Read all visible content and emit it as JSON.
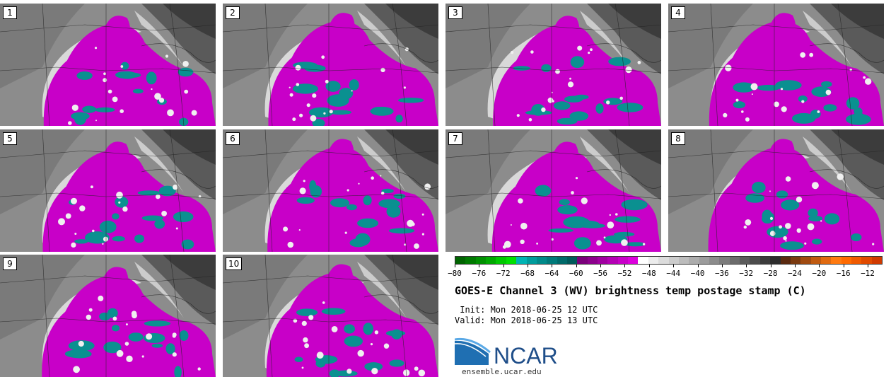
{
  "panels": [
    "1",
    "2",
    "3",
    "4",
    "5",
    "6",
    "7",
    "8",
    "9",
    "10"
  ],
  "colorbar": {
    "ticks": [
      "−80",
      "−76",
      "−72",
      "−68",
      "−64",
      "−60",
      "−56",
      "−52",
      "−48",
      "−44",
      "−40",
      "−36",
      "−32",
      "−28",
      "−24",
      "−20",
      "−16",
      "−12"
    ],
    "colors": [
      "#006400",
      "#007a00",
      "#009000",
      "#00a800",
      "#00c800",
      "#00e000",
      "#00b4b4",
      "#009c9c",
      "#008a8a",
      "#007a7a",
      "#006a6a",
      "#005a5a",
      "#7a007a",
      "#8c008c",
      "#a000a0",
      "#b400b4",
      "#c800c8",
      "#dc00dc",
      "#ffffff",
      "#ececec",
      "#dcdcdc",
      "#cccccc",
      "#bcbcbc",
      "#acacac",
      "#9c9c9c",
      "#8c8c8c",
      "#7c7c7c",
      "#6c6c6c",
      "#5c5c5c",
      "#4c4c4c",
      "#3c3c3c",
      "#2c2c2c",
      "#5a2a10",
      "#7a3a10",
      "#a04a10",
      "#c05a10",
      "#e06a10",
      "#ff7a10",
      "#ff6a00",
      "#f05a00",
      "#e04a00",
      "#d03a00"
    ]
  },
  "title": "GOES-E Channel 3 (WV) brightness temp postage stamp (C)",
  "init": " Init: Mon 2018-06-25 12 UTC",
  "valid": "Valid: Mon 2018-06-25 13 UTC",
  "logo_text": "NCAR",
  "logo_url": "ensemble.ucar.edu",
  "colors": {
    "magenta": "#c800c8",
    "teal": "#0a9090",
    "gray_bg": "#8a8a8a",
    "white_cloud": "#f0f0f0"
  }
}
